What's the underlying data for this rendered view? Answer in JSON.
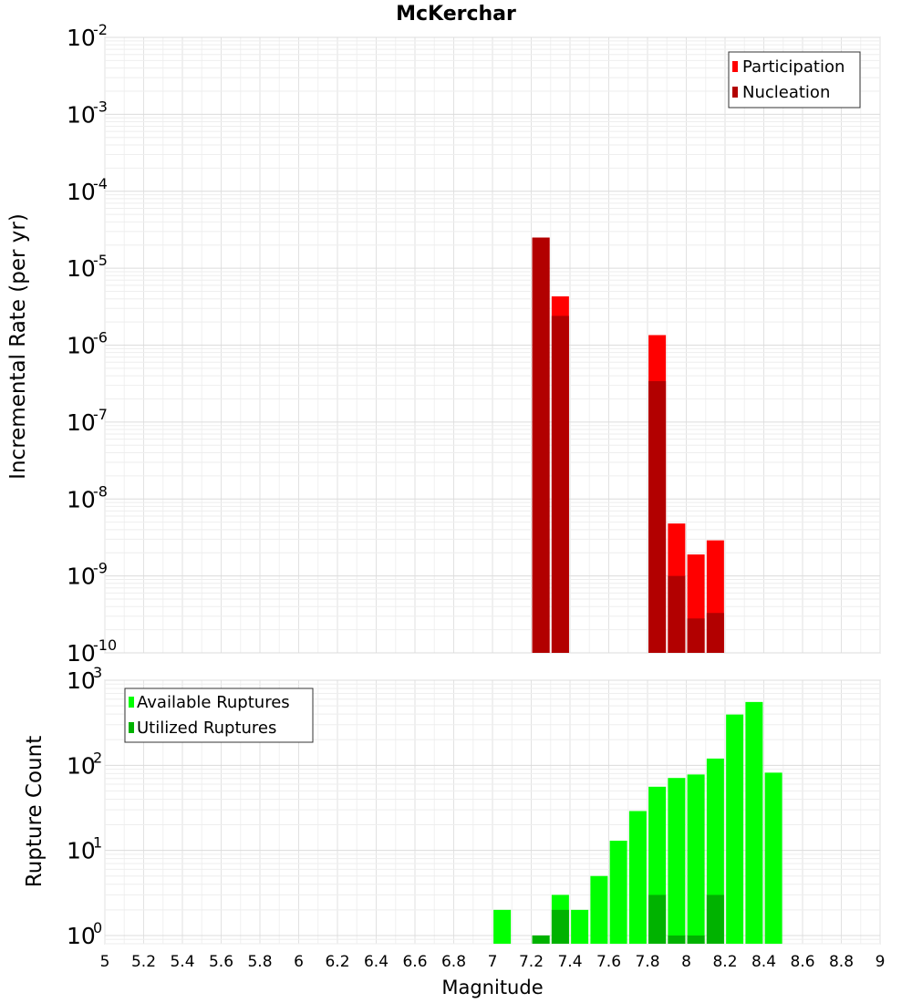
{
  "chart_data": [
    {
      "type": "bar",
      "title": "McKerchar",
      "xlabel": "Magnitude",
      "ylabel": "Incremental Rate (per yr)",
      "yscale": "log",
      "xlim": [
        5,
        9
      ],
      "ylim": [
        1e-10,
        0.01
      ],
      "grid": true,
      "legend_position": "top-right",
      "y_tick_labels": [
        {
          "base": "10",
          "exp": "-10",
          "value": 1e-10
        },
        {
          "base": "10",
          "exp": "-9",
          "value": 1e-09
        },
        {
          "base": "10",
          "exp": "-8",
          "value": 1e-08
        },
        {
          "base": "10",
          "exp": "-7",
          "value": 1e-07
        },
        {
          "base": "10",
          "exp": "-6",
          "value": 1e-06
        },
        {
          "base": "10",
          "exp": "-5",
          "value": 1e-05
        },
        {
          "base": "10",
          "exp": "-4",
          "value": 0.0001
        },
        {
          "base": "10",
          "exp": "-3",
          "value": 0.001
        },
        {
          "base": "10",
          "exp": "-2",
          "value": 0.01
        }
      ],
      "series": [
        {
          "name": "Participation",
          "color": "#ff0000",
          "points": [
            {
              "x": 7.25,
              "y": 2.5e-05
            },
            {
              "x": 7.35,
              "y": 4.3e-06
            },
            {
              "x": 7.85,
              "y": 1.35e-06
            },
            {
              "x": 7.95,
              "y": 4.8e-09
            },
            {
              "x": 8.05,
              "y": 1.9e-09
            },
            {
              "x": 8.15,
              "y": 2.9e-09
            }
          ]
        },
        {
          "name": "Nucleation",
          "color": "#b20000",
          "points": [
            {
              "x": 7.25,
              "y": 2.5e-05
            },
            {
              "x": 7.35,
              "y": 2.4e-06
            },
            {
              "x": 7.85,
              "y": 3.4e-07
            },
            {
              "x": 7.95,
              "y": 1e-09
            },
            {
              "x": 8.05,
              "y": 2.8e-10
            },
            {
              "x": 8.15,
              "y": 3.3e-10
            }
          ]
        }
      ]
    },
    {
      "type": "bar",
      "xlabel": "Magnitude",
      "ylabel": "Rupture Count",
      "yscale": "log",
      "xlim": [
        5,
        9
      ],
      "ylim": [
        0.8,
        1000
      ],
      "grid": true,
      "legend_position": "top-left",
      "x_ticks": [
        "5",
        "5.2",
        "5.4",
        "5.6",
        "5.8",
        "6",
        "6.2",
        "6.4",
        "6.6",
        "6.8",
        "7",
        "7.2",
        "7.4",
        "7.6",
        "7.8",
        "8",
        "8.2",
        "8.4",
        "8.6",
        "8.8",
        "9"
      ],
      "y_tick_labels": [
        {
          "base": "10",
          "exp": "0",
          "value": 1
        },
        {
          "base": "10",
          "exp": "1",
          "value": 10
        },
        {
          "base": "10",
          "exp": "2",
          "value": 100
        },
        {
          "base": "10",
          "exp": "3",
          "value": 1000
        }
      ],
      "series": [
        {
          "name": "Available Ruptures",
          "color": "#00ff00",
          "points": [
            {
              "x": 7.05,
              "y": 2
            },
            {
              "x": 7.25,
              "y": 1
            },
            {
              "x": 7.35,
              "y": 3
            },
            {
              "x": 7.45,
              "y": 2
            },
            {
              "x": 7.55,
              "y": 5
            },
            {
              "x": 7.65,
              "y": 13
            },
            {
              "x": 7.75,
              "y": 29
            },
            {
              "x": 7.85,
              "y": 56
            },
            {
              "x": 7.95,
              "y": 71
            },
            {
              "x": 8.05,
              "y": 78
            },
            {
              "x": 8.15,
              "y": 120
            },
            {
              "x": 8.25,
              "y": 395
            },
            {
              "x": 8.35,
              "y": 555
            },
            {
              "x": 8.45,
              "y": 82
            }
          ]
        },
        {
          "name": "Utilized Ruptures",
          "color": "#00b200",
          "points": [
            {
              "x": 7.25,
              "y": 1
            },
            {
              "x": 7.35,
              "y": 2
            },
            {
              "x": 7.85,
              "y": 3
            },
            {
              "x": 7.95,
              "y": 1
            },
            {
              "x": 8.05,
              "y": 1
            },
            {
              "x": 8.15,
              "y": 3
            }
          ]
        }
      ]
    }
  ]
}
